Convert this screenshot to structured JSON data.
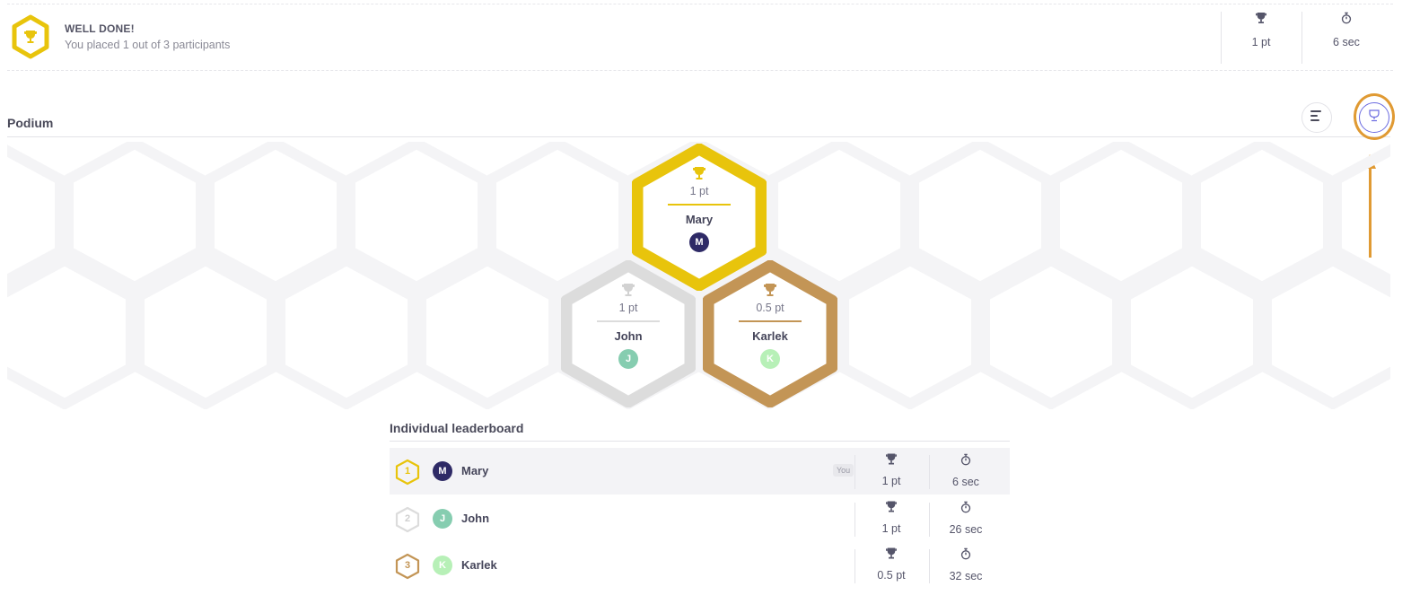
{
  "summary": {
    "title": "WELL DONE!",
    "subtitle": "You placed 1 out of 3 participants",
    "points": "1 pt",
    "time": "6 sec"
  },
  "podium": {
    "title": "Podium",
    "places": [
      {
        "rank": 1,
        "points": "1 pt",
        "name": "Mary",
        "initial": "M",
        "hex_color": "#e8c40c",
        "avatar_color": "#2e2a66"
      },
      {
        "rank": 2,
        "points": "1 pt",
        "name": "John",
        "initial": "J",
        "hex_color": "#dcdcdc",
        "avatar_color": "#86cdb0"
      },
      {
        "rank": 3,
        "points": "0.5 pt",
        "name": "Karlek",
        "initial": "K",
        "hex_color": "#c39556",
        "avatar_color": "#b7f0b7"
      }
    ]
  },
  "leaderboard": {
    "title": "Individual leaderboard",
    "you_label": "You",
    "rows": [
      {
        "rank": "1",
        "name": "Mary",
        "initial": "M",
        "points": "1 pt",
        "time": "6 sec",
        "rank_color": "#e8c40c",
        "avatar_color": "#2e2a66"
      },
      {
        "rank": "2",
        "name": "John",
        "initial": "J",
        "points": "1 pt",
        "time": "26 sec",
        "rank_color": "#dcdcdc",
        "avatar_color": "#86cdb0"
      },
      {
        "rank": "3",
        "name": "Karlek",
        "initial": "K",
        "points": "0.5 pt",
        "time": "32 sec",
        "rank_color": "#c39556",
        "avatar_color": "#b7f0b7"
      }
    ]
  },
  "icons": {
    "points": "trophy-icon",
    "time": "stopwatch-icon",
    "list_view": "list-view-icon",
    "podium_view": "podium-view-icon"
  },
  "colors": {
    "gold": "#e8c40c",
    "silver": "#dcdcdc",
    "bronze": "#c39556",
    "annotation": "#e09a33",
    "accent": "#6b6be0"
  }
}
